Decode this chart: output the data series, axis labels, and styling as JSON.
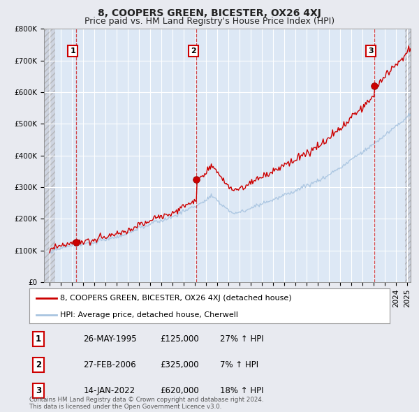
{
  "title": "8, COOPERS GREEN, BICESTER, OX26 4XJ",
  "subtitle": "Price paid vs. HM Land Registry's House Price Index (HPI)",
  "ylim": [
    0,
    800000
  ],
  "yticks": [
    0,
    100000,
    200000,
    300000,
    400000,
    500000,
    600000,
    700000,
    800000
  ],
  "ytick_labels": [
    "£0",
    "£100K",
    "£200K",
    "£300K",
    "£400K",
    "£500K",
    "£600K",
    "£700K",
    "£800K"
  ],
  "xlim_start": 1992.5,
  "xlim_end": 2025.3,
  "hpi_color": "#a8c4e0",
  "price_color": "#cc0000",
  "background_color": "#e8eaf0",
  "plot_bg_color": "#dde8f5",
  "grid_color": "#ffffff",
  "hatch_area_color": "#c8ccd8",
  "legend_label_price": "8, COOPERS GREEN, BICESTER, OX26 4XJ (detached house)",
  "legend_label_hpi": "HPI: Average price, detached house, Cherwell",
  "sale1_date": 1995.39,
  "sale1_price": 125000,
  "sale2_date": 2006.15,
  "sale2_price": 325000,
  "sale3_date": 2022.04,
  "sale3_price": 620000,
  "sales": [
    {
      "date_num": 1995.39,
      "price": 125000,
      "label": "1",
      "pct": "27% ↑ HPI",
      "date_str": "26-MAY-1995"
    },
    {
      "date_num": 2006.15,
      "price": 325000,
      "label": "2",
      "pct": "7% ↑ HPI",
      "date_str": "27-FEB-2006"
    },
    {
      "date_num": 2022.04,
      "price": 620000,
      "label": "3",
      "pct": "18% ↑ HPI",
      "date_str": "14-JAN-2022"
    }
  ],
  "footer": "Contains HM Land Registry data © Crown copyright and database right 2024.\nThis data is licensed under the Open Government Licence v3.0.",
  "title_fontsize": 10,
  "subtitle_fontsize": 9,
  "tick_fontsize": 7.5,
  "legend_fontsize": 8,
  "table_fontsize": 8.5
}
